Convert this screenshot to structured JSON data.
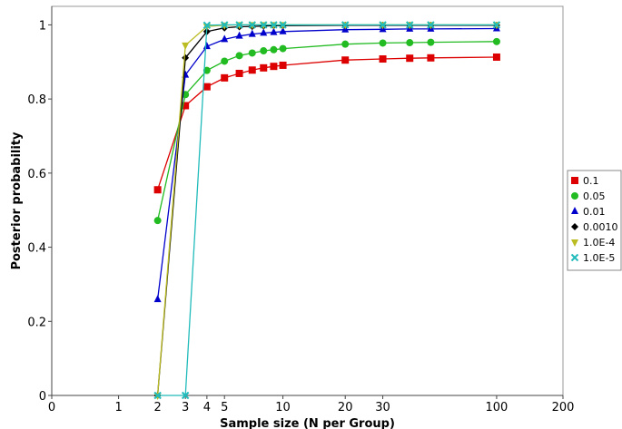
{
  "chart_data": {
    "type": "line",
    "title": "",
    "xlabel": "Sample size (N per Group)",
    "ylabel": "Posterior probability",
    "x_scale": "log-shifted",
    "xlim": [
      0,
      200
    ],
    "ylim": [
      0,
      1.05
    ],
    "x_ticks": [
      0,
      1,
      2,
      3,
      4,
      5,
      10,
      20,
      30,
      100,
      200
    ],
    "x_tick_labels": [
      "0",
      "1",
      "2",
      "3",
      "4",
      "5",
      "10",
      "20",
      "30",
      "100",
      "200"
    ],
    "y_ticks": [
      0,
      0.2,
      0.4,
      0.6,
      0.8,
      1.0
    ],
    "y_tick_labels": [
      "0",
      "0.2",
      "0.4",
      "0.6",
      "0.8",
      "1"
    ],
    "grid": false,
    "legend_position": "right",
    "series": [
      {
        "name": "0.1",
        "color": "#dd0000",
        "marker": "square",
        "x": [
          2,
          3,
          4,
          5,
          6,
          7,
          8,
          9,
          10,
          20,
          30,
          40,
          50,
          100
        ],
        "values": [
          0.555,
          0.782,
          0.833,
          0.857,
          0.869,
          0.878,
          0.884,
          0.888,
          0.891,
          0.905,
          0.908,
          0.91,
          0.911,
          0.913
        ]
      },
      {
        "name": "0.05",
        "color": "#22bb22",
        "marker": "circle",
        "x": [
          2,
          3,
          4,
          5,
          6,
          7,
          8,
          9,
          10,
          20,
          30,
          40,
          50,
          100
        ],
        "values": [
          0.472,
          0.812,
          0.877,
          0.902,
          0.917,
          0.924,
          0.93,
          0.933,
          0.936,
          0.948,
          0.951,
          0.952,
          0.953,
          0.955
        ]
      },
      {
        "name": "0.01",
        "color": "#0000cc",
        "marker": "triangle",
        "x": [
          2,
          3,
          4,
          5,
          6,
          7,
          8,
          9,
          10,
          20,
          30,
          40,
          50,
          100
        ],
        "values": [
          0.259,
          0.865,
          0.942,
          0.961,
          0.97,
          0.975,
          0.978,
          0.98,
          0.982,
          0.987,
          0.988,
          0.989,
          0.989,
          0.99
        ]
      },
      {
        "name": "0.0010",
        "color": "#000000",
        "marker": "diamond",
        "x": [
          2,
          3,
          4,
          5,
          6,
          7,
          8,
          9,
          10,
          20,
          30,
          40,
          50,
          100
        ],
        "values": [
          0.0,
          0.911,
          0.982,
          0.992,
          0.995,
          0.996,
          0.997,
          0.998,
          0.998,
          0.999,
          0.999,
          0.999,
          0.999,
          0.999
        ]
      },
      {
        "name": "1.0E-4",
        "color": "#bbbb22",
        "marker": "triangle-down",
        "x": [
          2,
          3,
          4,
          5,
          6,
          7,
          8,
          9,
          10,
          20,
          30,
          40,
          50,
          100
        ],
        "values": [
          0.0,
          0.945,
          0.996,
          0.999,
          1.0,
          1.0,
          1.0,
          1.0,
          1.0,
          1.0,
          1.0,
          1.0,
          1.0,
          1.0
        ]
      },
      {
        "name": "1.0E-5",
        "color": "#22bbbb",
        "marker": "x",
        "x": [
          2,
          3,
          4,
          5,
          6,
          7,
          8,
          9,
          10,
          20,
          30,
          40,
          50,
          100
        ],
        "values": [
          0.0,
          0.0,
          0.999,
          1.0,
          1.0,
          1.0,
          1.0,
          1.0,
          1.0,
          1.0,
          1.0,
          1.0,
          1.0,
          1.0
        ]
      }
    ]
  }
}
